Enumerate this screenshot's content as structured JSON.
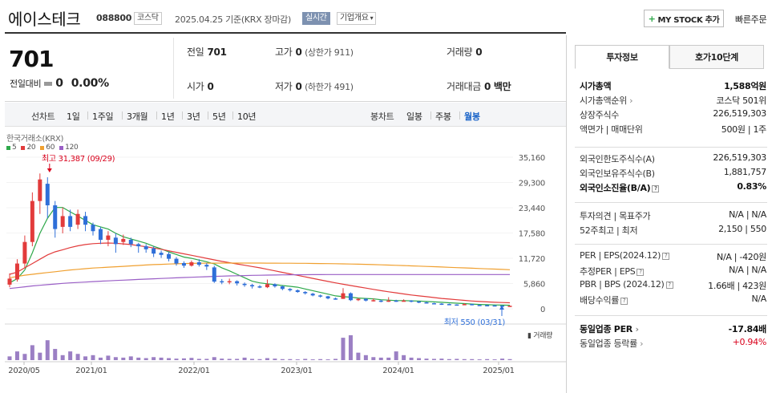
{
  "header": {
    "company_name": "에이스테크",
    "code": "088800",
    "market": "코스닥",
    "date_text": "2025.04.25  기준(KRX 장마감)",
    "realtime_label": "실시간",
    "company_info_label": "기업개요",
    "mystock_label": "MY STOCK 추가",
    "quick_order_label": "빠른주문"
  },
  "quote": {
    "price": "701",
    "change_label": "전일대비",
    "change_value": "0",
    "change_pct": "0.00%",
    "prev_close": {
      "label": "전일",
      "value": "701"
    },
    "high": {
      "label": "고가",
      "value": "0",
      "sub": "(상한가 911)"
    },
    "volume": {
      "label": "거래량",
      "value": "0"
    },
    "open": {
      "label": "시가",
      "value": "0"
    },
    "low": {
      "label": "저가",
      "value": "0",
      "sub": "(하한가 491)"
    },
    "amount": {
      "label": "거래대금",
      "value": "0 백만"
    }
  },
  "period_tabs": {
    "line_label": "선차트",
    "items": [
      "1일",
      "1주일",
      "3개월",
      "1년",
      "3년",
      "5년",
      "10년"
    ],
    "candle_label": "봉차트",
    "candle_items": [
      "일봉",
      "주봉",
      "월봉"
    ],
    "active": "월봉"
  },
  "chart": {
    "source": "한국거래소(KRX)",
    "legend": [
      {
        "name": "5",
        "color": "#2ea84a"
      },
      {
        "name": "20",
        "color": "#e23b3b"
      },
      {
        "name": "60",
        "color": "#f0a030"
      },
      {
        "name": "120",
        "color": "#9a5fc6"
      }
    ],
    "high_note": "최고 31,387 (09/29)",
    "low_note": "최저 550 (03/31)",
    "volume_label": "거래량",
    "y_ticks": [
      "35,160",
      "29,300",
      "23,440",
      "17,580",
      "11,720",
      "5,860",
      "0"
    ],
    "x_ticks": [
      "2020/05",
      "2021/01",
      "2022/01",
      "2023/01",
      "2024/01",
      "2025/01"
    ]
  },
  "chart_data": {
    "type": "candlestick",
    "title": "",
    "ylim": [
      0,
      35160
    ],
    "x_ticks": [
      "2020/05",
      "2021/01",
      "2022/01",
      "2023/01",
      "2024/01",
      "2025/01"
    ],
    "series": [
      {
        "name": "price",
        "candles": [
          [
            7000,
            5600,
            8200,
            5000,
            "u"
          ],
          [
            6800,
            10500,
            11500,
            6300,
            "u"
          ],
          [
            10500,
            15500,
            17000,
            9500,
            "u"
          ],
          [
            15500,
            25000,
            27000,
            14500,
            "u"
          ],
          [
            25000,
            30000,
            31387,
            22000,
            "u"
          ],
          [
            29000,
            24000,
            30500,
            21000,
            "d"
          ],
          [
            24000,
            18500,
            25000,
            16500,
            "d"
          ],
          [
            19000,
            21500,
            23500,
            17500,
            "u"
          ],
          [
            21500,
            19000,
            23000,
            18000,
            "d"
          ],
          [
            19500,
            22000,
            23000,
            18500,
            "u"
          ],
          [
            21500,
            19500,
            22500,
            18000,
            "d"
          ],
          [
            19500,
            18000,
            20000,
            17000,
            "d"
          ],
          [
            18500,
            16000,
            19000,
            15000,
            "d"
          ],
          [
            16000,
            17000,
            18000,
            14500,
            "u"
          ],
          [
            16500,
            15000,
            17500,
            13000,
            "d"
          ],
          [
            15500,
            16200,
            17200,
            14800,
            "u"
          ],
          [
            16000,
            15000,
            16500,
            14300,
            "d"
          ],
          [
            15000,
            14500,
            15300,
            13000,
            "d"
          ],
          [
            14500,
            13800,
            15000,
            13000,
            "d"
          ],
          [
            14000,
            12800,
            14500,
            12000,
            "d"
          ],
          [
            13000,
            12500,
            13500,
            11800,
            "d"
          ],
          [
            12700,
            11600,
            13200,
            11000,
            "d"
          ],
          [
            11600,
            10500,
            12000,
            10000,
            "d"
          ],
          [
            10600,
            10000,
            11000,
            9500,
            "d"
          ],
          [
            10000,
            10800,
            11200,
            9800,
            "u"
          ],
          [
            10800,
            10200,
            11500,
            9800,
            "d"
          ],
          [
            10200,
            9800,
            10600,
            9000,
            "d"
          ],
          [
            9600,
            6300,
            10000,
            6000,
            "d"
          ],
          [
            6400,
            6200,
            6900,
            5700,
            "d"
          ],
          [
            6200,
            6400,
            7000,
            5700,
            "u"
          ],
          [
            6400,
            5900,
            6600,
            5400,
            "d"
          ],
          [
            5800,
            5500,
            6100,
            5100,
            "d"
          ],
          [
            5500,
            5200,
            5800,
            4700,
            "d"
          ],
          [
            5200,
            5000,
            5500,
            4800,
            "d"
          ],
          [
            5000,
            5700,
            6800,
            4800,
            "u"
          ],
          [
            5700,
            5200,
            5900,
            4900,
            "d"
          ],
          [
            5200,
            4600,
            5400,
            4300,
            "d"
          ],
          [
            4600,
            4300,
            4800,
            4000,
            "d"
          ],
          [
            4300,
            3900,
            4500,
            3700,
            "d"
          ],
          [
            3900,
            3600,
            4100,
            3300,
            "d"
          ],
          [
            3500,
            3100,
            3700,
            2900,
            "d"
          ],
          [
            3100,
            2900,
            3300,
            2600,
            "d"
          ],
          [
            2900,
            2400,
            3000,
            2200,
            "d"
          ],
          [
            2400,
            2300,
            2600,
            2100,
            "d"
          ],
          [
            2300,
            3600,
            4800,
            2300,
            "u"
          ],
          [
            3600,
            2000,
            3800,
            1800,
            "d"
          ],
          [
            2000,
            2300,
            2500,
            1800,
            "u"
          ],
          [
            2300,
            1900,
            2500,
            1700,
            "d"
          ],
          [
            1900,
            2000,
            2400,
            1700,
            "u"
          ],
          [
            1900,
            1700,
            2100,
            1500,
            "d"
          ],
          [
            1700,
            1900,
            2700,
            1600,
            "u"
          ],
          [
            1900,
            1800,
            2100,
            1600,
            "d"
          ],
          [
            1800,
            1900,
            2200,
            1700,
            "u"
          ],
          [
            1900,
            1700,
            2000,
            1500,
            "d"
          ],
          [
            1700,
            1500,
            1800,
            1300,
            "d"
          ],
          [
            1500,
            1300,
            1600,
            1200,
            "d"
          ],
          [
            1300,
            1200,
            1400,
            1100,
            "d"
          ],
          [
            1200,
            1100,
            1300,
            900,
            "d"
          ],
          [
            1100,
            1000,
            1200,
            850,
            "d"
          ],
          [
            1000,
            950,
            1050,
            800,
            "d"
          ],
          [
            950,
            1100,
            1300,
            850,
            "u"
          ],
          [
            1100,
            900,
            1150,
            800,
            "d"
          ],
          [
            900,
            850,
            950,
            750,
            "d"
          ],
          [
            850,
            800,
            900,
            700,
            "d"
          ],
          [
            800,
            750,
            850,
            600,
            "d"
          ],
          [
            750,
            700,
            800,
            550,
            "d"
          ],
          [
            700,
            701,
            750,
            600,
            "u"
          ]
        ]
      },
      {
        "name": "5",
        "values": [
          6000,
          7000,
          9000,
          13000,
          17500,
          21000,
          23500,
          23500,
          22500,
          21500,
          20500,
          19500,
          19000,
          18500,
          17500,
          16700,
          16200,
          15700,
          15200,
          14500,
          13900,
          13200,
          12600,
          12000,
          11700,
          11300,
          10900,
          10400,
          9500,
          8800,
          8000,
          7200,
          6400,
          6000,
          5800,
          5600,
          5400,
          5200,
          5000,
          4600,
          4200,
          3800,
          3400,
          3000,
          2800,
          2700,
          2500,
          2400,
          2300,
          2100,
          2000,
          1900,
          1900,
          1850,
          1800,
          1700,
          1600,
          1500,
          1400,
          1300,
          1200,
          1100,
          1000,
          950,
          900,
          850,
          820
        ]
      },
      {
        "name": "20",
        "values": [
          8000,
          8500,
          9500,
          10500,
          11500,
          12500,
          13200,
          13700,
          14200,
          14600,
          14900,
          15100,
          15200,
          15250,
          15200,
          15050,
          14900,
          14650,
          14400,
          14100,
          13800,
          13450,
          13100,
          12750,
          12400,
          12050,
          11700,
          11350,
          11000,
          10700,
          10400,
          10100,
          9800,
          9500,
          9150,
          8800,
          8450,
          8100,
          7750,
          7400,
          7050,
          6700,
          6350,
          6000,
          5700,
          5400,
          5100,
          4800,
          4500,
          4200,
          3950,
          3700,
          3450,
          3200,
          3000,
          2800,
          2600,
          2400,
          2250,
          2100,
          1950,
          1800,
          1700,
          1600,
          1500,
          1450,
          1400
        ]
      },
      {
        "name": "60",
        "values": [
          7200,
          7500,
          7800,
          8000,
          8200,
          8400,
          8600,
          8800,
          9000,
          9150,
          9300,
          9450,
          9550,
          9650,
          9750,
          9850,
          9950,
          10050,
          10150,
          10250,
          10300,
          10380,
          10440,
          10490,
          10530,
          10560,
          10580,
          10590,
          10595,
          10600,
          10600,
          10600,
          10600,
          10595,
          10590,
          10580,
          10570,
          10560,
          10550,
          10540,
          10520,
          10500,
          10480,
          10450,
          10420,
          10380,
          10340,
          10300,
          10250,
          10200,
          10140,
          10080,
          10020,
          9960,
          9900,
          9830,
          9760,
          9690,
          9620,
          9550,
          9480,
          9410,
          9340,
          9270,
          9200,
          9130,
          9060
        ]
      },
      {
        "name": "120",
        "values": [
          4700,
          4900,
          5100,
          5300,
          5450,
          5600,
          5750,
          5900,
          6000,
          6100,
          6200,
          6300,
          6400,
          6480,
          6560,
          6640,
          6720,
          6800,
          6880,
          6960,
          7040,
          7110,
          7180,
          7250,
          7320,
          7390,
          7450,
          7510,
          7570,
          7620,
          7670,
          7710,
          7750,
          7780,
          7810,
          7840,
          7860,
          7880,
          7900,
          7910,
          7920,
          7930,
          7940,
          7945,
          7950,
          7950,
          7950,
          7950,
          7950,
          7950,
          7950,
          7950,
          7950,
          7950,
          7950,
          7950,
          7950,
          7950,
          7950,
          7950,
          7950,
          7950,
          7950,
          7950,
          7950,
          7950,
          7950
        ]
      }
    ],
    "volume": [
      0.15,
      0.35,
      0.25,
      0.6,
      0.3,
      0.8,
      0.45,
      0.2,
      0.35,
      0.25,
      0.15,
      0.2,
      0.1,
      0.18,
      0.12,
      0.1,
      0.15,
      0.1,
      0.08,
      0.12,
      0.1,
      0.08,
      0.06,
      0.07,
      0.09,
      0.05,
      0.05,
      0.12,
      0.06,
      0.05,
      0.05,
      0.1,
      0.05,
      0.04,
      0.08,
      0.06,
      0.04,
      0.04,
      0.03,
      0.05,
      0.03,
      0.04,
      0.03,
      0.05,
      0.9,
      1.0,
      0.3,
      0.2,
      0.12,
      0.1,
      0.1,
      0.35,
      0.2,
      0.1,
      0.08,
      0.06,
      0.05,
      0.06,
      0.04,
      0.05,
      0.04,
      0.04,
      0.03,
      0.04,
      0.03,
      0.06,
      0.04
    ]
  },
  "right_panel": {
    "tabs": [
      "투자정보",
      "호가10단계"
    ],
    "rows1": [
      {
        "k": "시가총액",
        "v": "1,588억원",
        "bold": true
      },
      {
        "k": "시가총액순위",
        "v": "코스닥 501위",
        "caret": true
      },
      {
        "k": "상장주식수",
        "v": "226,519,303"
      },
      {
        "k": "액면가 | 매매단위",
        "v": "500원 | 1주"
      }
    ],
    "rows2": [
      {
        "k": "외국인한도주식수(A)",
        "v": "226,519,303"
      },
      {
        "k": "외국인보유주식수(B)",
        "v": "1,881,757"
      },
      {
        "k": "외국인소진율(B/A)",
        "v": "0.83%",
        "bold": true,
        "q": true
      }
    ],
    "rows3": [
      {
        "k": "투자의견 | 목표주가",
        "v": "N/A | N/A"
      },
      {
        "k": "52주최고 | 최저",
        "v": "2,150 | 550"
      }
    ],
    "rows4": [
      {
        "k": "PER | EPS(2024.12)",
        "v": "N/A | -420원",
        "q": true
      },
      {
        "k": "추정PER | EPS",
        "v": "N/A | N/A",
        "q": true
      },
      {
        "k": "PBR | BPS (2024.12)",
        "v": "1.66배 | 423원",
        "q": true
      },
      {
        "k": "배당수익률",
        "v": "N/A",
        "q": true
      }
    ],
    "rows5": [
      {
        "k": "동일업종 PER",
        "v": "-17.84배",
        "bold": true,
        "caret": true
      },
      {
        "k": "동일업종 등락률",
        "v": "+0.94%",
        "red": true,
        "caret": true
      }
    ]
  }
}
